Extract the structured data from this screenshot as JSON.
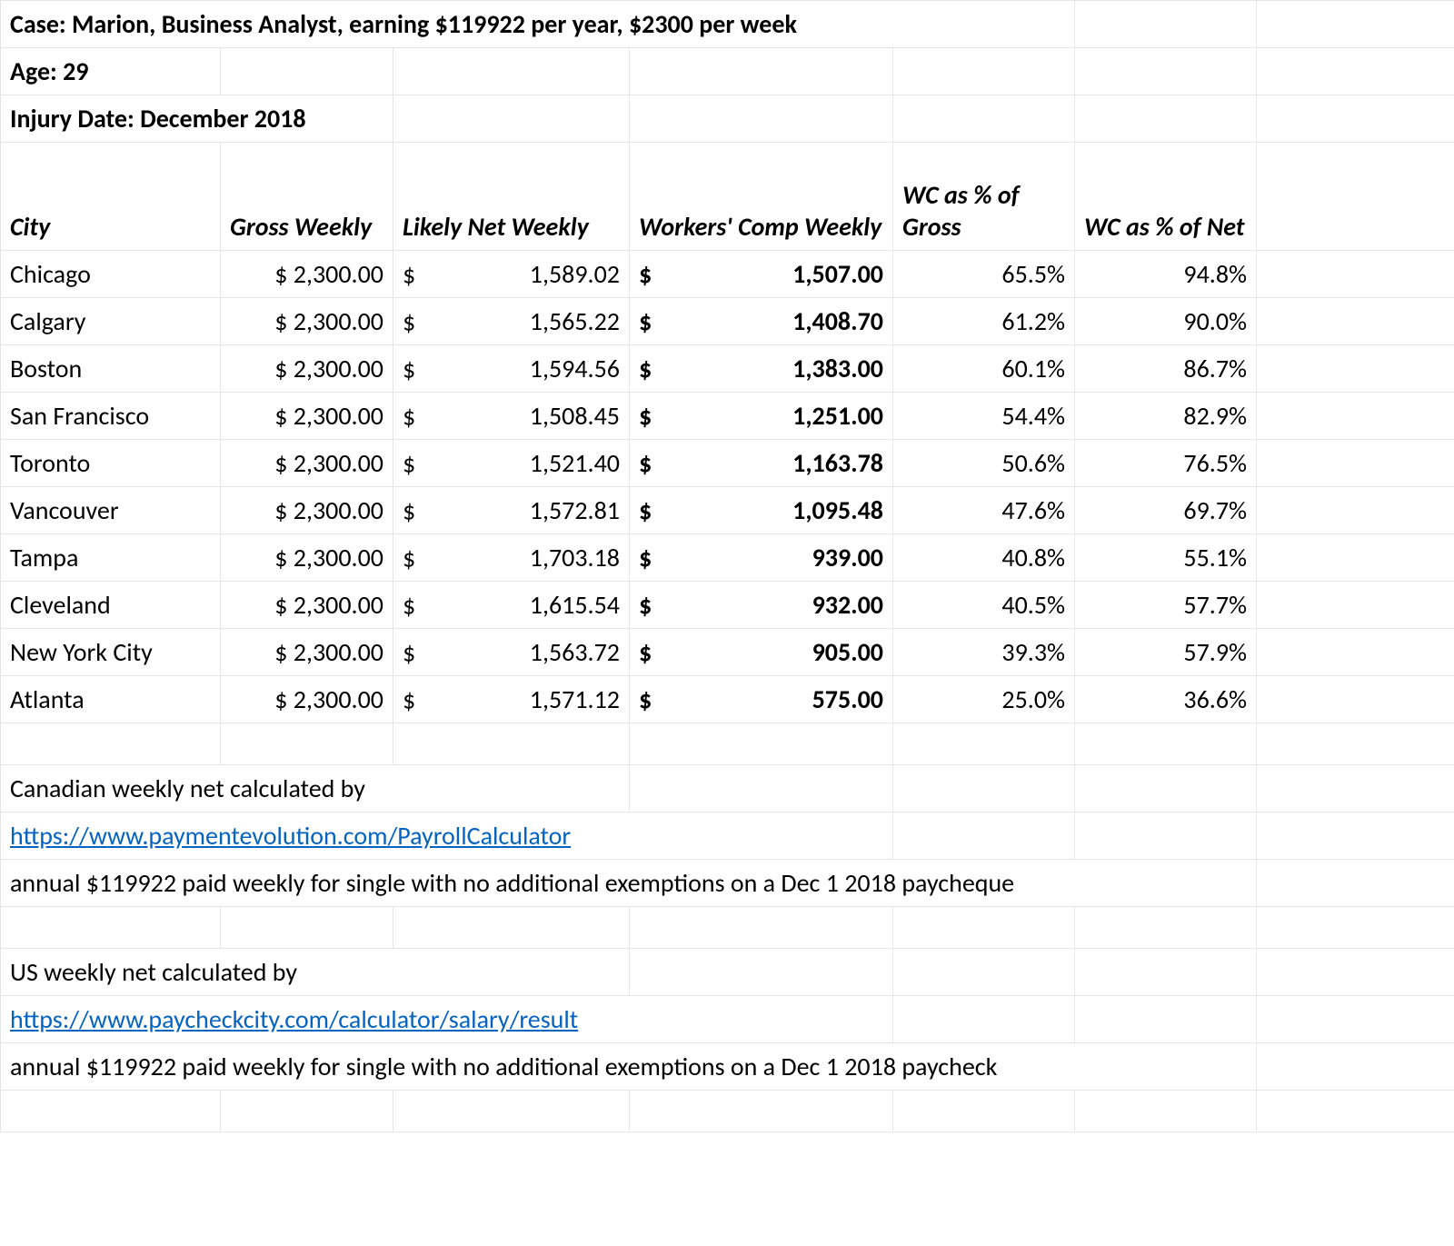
{
  "colors": {
    "text": "#000000",
    "border": "#e6e6e6",
    "link": "#0563c1",
    "background": "#ffffff"
  },
  "header": {
    "case": "Case:  Marion, Business Analyst, earning $119922 per year, $2300 per week",
    "age": "Age: 29",
    "injury": "Injury Date:  December 2018"
  },
  "columns": {
    "city": "City",
    "gross": "Gross Weekly",
    "net": "Likely Net Weekly",
    "wc": "Workers' Comp Weekly",
    "pct_gross": "WC as % of Gross",
    "pct_net": "WC as % of Net"
  },
  "rows": [
    {
      "city": "Chicago",
      "gross": "$ 2,300.00",
      "net_sym": "$",
      "net": "1,589.02",
      "wc_sym": "$",
      "wc": "1,507.00",
      "pct_gross": "65.5%",
      "pct_net": "94.8%"
    },
    {
      "city": "Calgary",
      "gross": "$ 2,300.00",
      "net_sym": "$",
      "net": "1,565.22",
      "wc_sym": "$",
      "wc": "1,408.70",
      "pct_gross": "61.2%",
      "pct_net": "90.0%"
    },
    {
      "city": "Boston",
      "gross": "$ 2,300.00",
      "net_sym": "$",
      "net": "1,594.56",
      "wc_sym": "$",
      "wc": "1,383.00",
      "pct_gross": "60.1%",
      "pct_net": "86.7%"
    },
    {
      "city": "San Francisco",
      "gross": "$ 2,300.00",
      "net_sym": "$",
      "net": "1,508.45",
      "wc_sym": "$",
      "wc": "1,251.00",
      "pct_gross": "54.4%",
      "pct_net": "82.9%"
    },
    {
      "city": "Toronto",
      "gross": "$ 2,300.00",
      "net_sym": "$",
      "net": "1,521.40",
      "wc_sym": "$",
      "wc": "1,163.78",
      "pct_gross": "50.6%",
      "pct_net": "76.5%"
    },
    {
      "city": "Vancouver",
      "gross": "$ 2,300.00",
      "net_sym": "$",
      "net": "1,572.81",
      "wc_sym": "$",
      "wc": "1,095.48",
      "pct_gross": "47.6%",
      "pct_net": "69.7%"
    },
    {
      "city": "Tampa",
      "gross": "$ 2,300.00",
      "net_sym": "$",
      "net": "1,703.18",
      "wc_sym": "$",
      "wc": "939.00",
      "pct_gross": "40.8%",
      "pct_net": "55.1%"
    },
    {
      "city": "Cleveland",
      "gross": "$ 2,300.00",
      "net_sym": "$",
      "net": "1,615.54",
      "wc_sym": "$",
      "wc": "932.00",
      "pct_gross": "40.5%",
      "pct_net": "57.7%"
    },
    {
      "city": "New York City",
      "gross": "$ 2,300.00",
      "net_sym": "$",
      "net": "1,563.72",
      "wc_sym": "$",
      "wc": "905.00",
      "pct_gross": "39.3%",
      "pct_net": "57.9%"
    },
    {
      "city": "Atlanta",
      "gross": "$ 2,300.00",
      "net_sym": "$",
      "net": "1,571.12",
      "wc_sym": "$",
      "wc": "575.00",
      "pct_gross": "25.0%",
      "pct_net": "36.6%"
    }
  ],
  "notes": {
    "ca_label": "Canadian weekly net calculated by",
    "ca_link": "https://www.paymentevolution.com/PayrollCalculator",
    "ca_detail": "annual $119922 paid weekly for  single with no additional exemptions on a Dec 1 2018 paycheque",
    "us_label": "US weekly net calculated by",
    "us_link": "https://www.paycheckcity.com/calculator/salary/result",
    "us_detail": "annual $119922 paid weekly for  single with no additional exemptions on a Dec 1 2018 paycheck"
  }
}
